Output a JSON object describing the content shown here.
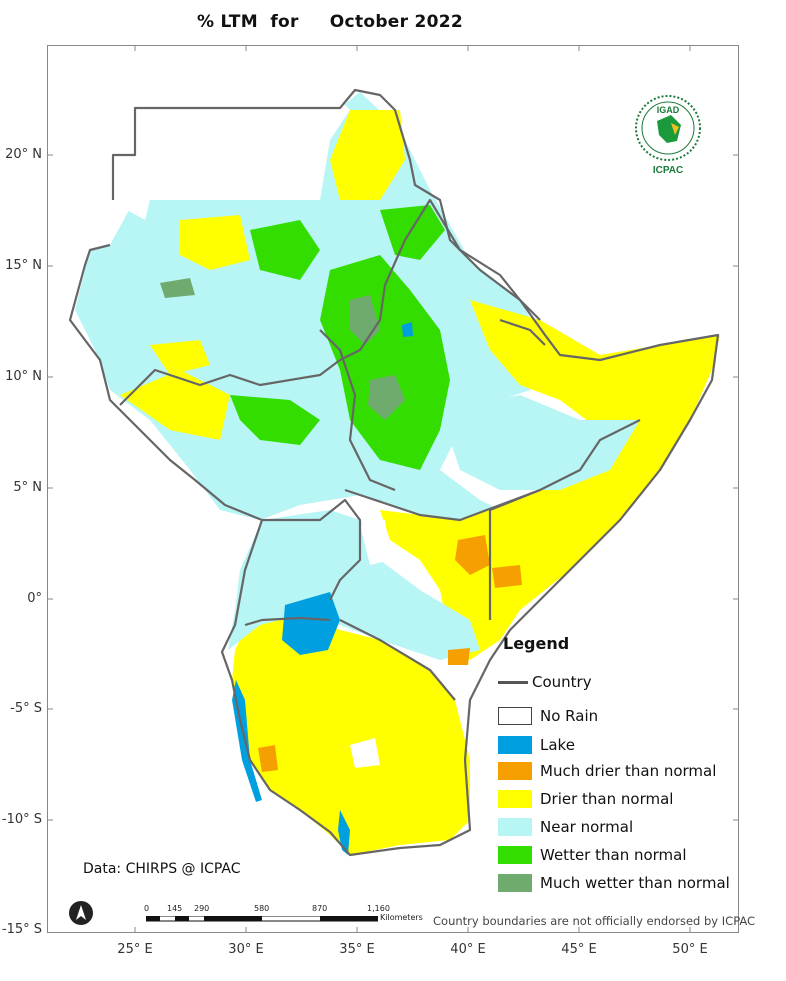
{
  "title": "% LTM  for     October 2022",
  "axes": {
    "y_ticks": [
      "20° N",
      "15° N",
      "10° N",
      "5° N",
      "0°",
      "-5° S",
      "-10° S",
      "-15° S"
    ],
    "x_ticks": [
      "25° E",
      "30° E",
      "35° E",
      "40° E",
      "45° E",
      "50° E"
    ]
  },
  "logo": {
    "top_text": "IGAD",
    "bottom_text": "ICPAC"
  },
  "legend": {
    "title": "Legend",
    "country_label": "Country",
    "items": [
      {
        "label": "No Rain",
        "color": "#ffffff"
      },
      {
        "label": "Lake",
        "color": "#00a0e0"
      },
      {
        "label": "Much drier than normal",
        "color": "#f5a000"
      },
      {
        "label": "Drier than normal",
        "color": "#ffff00"
      },
      {
        "label": "Near normal",
        "color": "#b8f5f5"
      },
      {
        "label": "Wetter than normal",
        "color": "#33dd00"
      },
      {
        "label": "Much wetter than normal",
        "color": "#6faa6f"
      }
    ]
  },
  "data_source": "Data: CHIRPS @ ICPAC",
  "disclaimer": "Country boundaries are not officially endorsed by ICPAC",
  "scale": {
    "ticks": [
      "0",
      "145",
      "290",
      "580",
      "870",
      "1,160"
    ],
    "unit": "Kilometers"
  },
  "colors": {
    "border": "#666666",
    "frame": "#888888"
  }
}
